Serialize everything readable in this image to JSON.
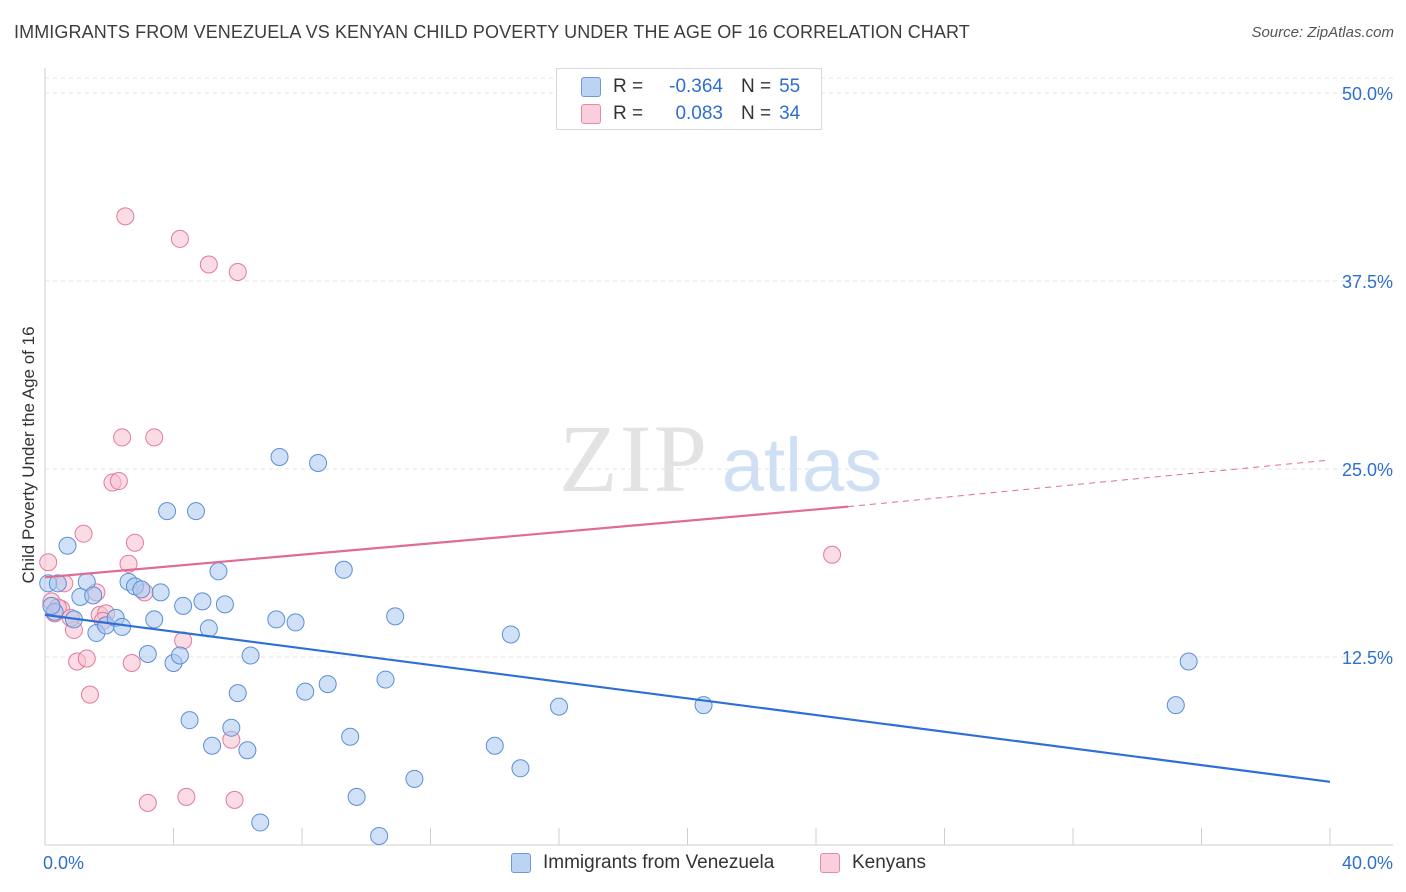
{
  "title": "IMMIGRANTS FROM VENEZUELA VS KENYAN CHILD POVERTY UNDER THE AGE OF 16 CORRELATION CHART",
  "source": "Source: ZipAtlas.com",
  "watermark": {
    "zip": "ZIP",
    "atlas": "atlas"
  },
  "legend": {
    "rows": [
      {
        "r_label": "R =",
        "r_value": "-0.364",
        "n_label": "N =",
        "n_value": "55"
      },
      {
        "r_label": "R =",
        "r_value": "0.083",
        "n_label": "N =",
        "n_value": "34"
      }
    ]
  },
  "chart_data": {
    "type": "scatter",
    "title": "IMMIGRANTS FROM VENEZUELA VS KENYAN CHILD POVERTY UNDER THE AGE OF 16 CORRELATION CHART",
    "xlabel": "",
    "ylabel": "Child Poverty Under the Age of 16",
    "xlim": [
      0,
      40
    ],
    "ylim": [
      0,
      51
    ],
    "x_tick_labels": [
      "0.0%",
      "40.0%"
    ],
    "y_ticks": [
      12.5,
      25.0,
      37.5,
      50.0
    ],
    "y_tick_labels": [
      "12.5%",
      "25.0%",
      "37.5%",
      "50.0%"
    ],
    "grid": true,
    "colors": {
      "venezuela_fill": "#a9c8f0",
      "venezuela_stroke": "#5b8fd6",
      "venezuela_line": "#2e6fd6",
      "kenyan_fill": "#f7bfd0",
      "kenyan_stroke": "#e27a9c",
      "kenyan_line": "#e06b94",
      "axis_label": "#2f6fcf"
    },
    "series": [
      {
        "name": "Immigrants from Venezuela",
        "points": [
          [
            0.1,
            17.4
          ],
          [
            0.3,
            15.5
          ],
          [
            0.4,
            17.4
          ],
          [
            0.7,
            19.9
          ],
          [
            0.9,
            15.0
          ],
          [
            1.1,
            16.5
          ],
          [
            1.3,
            17.5
          ],
          [
            1.5,
            16.6
          ],
          [
            1.6,
            14.1
          ],
          [
            1.9,
            14.6
          ],
          [
            2.2,
            15.1
          ],
          [
            2.4,
            14.5
          ],
          [
            2.6,
            17.5
          ],
          [
            2.8,
            17.2
          ],
          [
            3.0,
            17.0
          ],
          [
            3.2,
            12.7
          ],
          [
            3.4,
            15.0
          ],
          [
            3.6,
            16.8
          ],
          [
            3.8,
            22.2
          ],
          [
            4.0,
            12.1
          ],
          [
            4.2,
            12.6
          ],
          [
            4.3,
            15.9
          ],
          [
            4.5,
            8.3
          ],
          [
            4.7,
            22.2
          ],
          [
            4.9,
            16.2
          ],
          [
            5.1,
            14.4
          ],
          [
            5.2,
            6.6
          ],
          [
            5.4,
            18.2
          ],
          [
            5.6,
            16.0
          ],
          [
            5.8,
            7.8
          ],
          [
            6.0,
            10.1
          ],
          [
            6.3,
            6.3
          ],
          [
            6.4,
            12.6
          ],
          [
            6.7,
            1.5
          ],
          [
            7.2,
            15.0
          ],
          [
            7.3,
            25.8
          ],
          [
            7.8,
            14.8
          ],
          [
            8.1,
            10.2
          ],
          [
            8.5,
            25.4
          ],
          [
            8.8,
            10.7
          ],
          [
            9.3,
            18.3
          ],
          [
            9.5,
            7.2
          ],
          [
            9.7,
            3.2
          ],
          [
            10.4,
            0.6
          ],
          [
            10.6,
            11.0
          ],
          [
            10.9,
            15.2
          ],
          [
            11.5,
            4.4
          ],
          [
            14.0,
            6.6
          ],
          [
            14.5,
            14.0
          ],
          [
            14.8,
            5.1
          ],
          [
            16.0,
            9.2
          ],
          [
            20.5,
            9.3
          ],
          [
            35.2,
            9.3
          ],
          [
            35.6,
            12.2
          ],
          [
            0.2,
            15.9
          ]
        ]
      },
      {
        "name": "Kenyans",
        "points": [
          [
            0.1,
            18.8
          ],
          [
            0.2,
            16.2
          ],
          [
            0.3,
            15.4
          ],
          [
            0.5,
            15.7
          ],
          [
            0.6,
            17.4
          ],
          [
            0.9,
            14.3
          ],
          [
            1.0,
            12.2
          ],
          [
            1.2,
            20.7
          ],
          [
            1.3,
            12.4
          ],
          [
            1.4,
            10.0
          ],
          [
            1.6,
            16.8
          ],
          [
            1.7,
            15.3
          ],
          [
            1.9,
            15.4
          ],
          [
            2.1,
            24.1
          ],
          [
            2.3,
            24.2
          ],
          [
            2.4,
            27.1
          ],
          [
            2.5,
            41.8
          ],
          [
            2.6,
            18.7
          ],
          [
            2.7,
            12.1
          ],
          [
            2.8,
            20.1
          ],
          [
            3.1,
            16.8
          ],
          [
            3.2,
            2.8
          ],
          [
            3.4,
            27.1
          ],
          [
            4.2,
            40.3
          ],
          [
            4.3,
            13.6
          ],
          [
            4.4,
            3.2
          ],
          [
            5.1,
            38.6
          ],
          [
            5.8,
            7.0
          ],
          [
            5.9,
            3.0
          ],
          [
            6.0,
            38.1
          ],
          [
            24.5,
            19.3
          ],
          [
            0.4,
            15.8
          ],
          [
            0.8,
            15.1
          ],
          [
            1.8,
            14.9
          ]
        ]
      }
    ],
    "trend_lines": [
      {
        "series": "Immigrants from Venezuela",
        "x": [
          0,
          40
        ],
        "y": [
          15.3,
          4.2
        ],
        "style": "solid"
      },
      {
        "series": "Kenyans",
        "x": [
          0,
          25
        ],
        "y": [
          17.8,
          22.5
        ],
        "style": "solid"
      },
      {
        "series": "Kenyans",
        "x": [
          25,
          40
        ],
        "y": [
          22.5,
          25.6
        ],
        "style": "dashed"
      }
    ]
  },
  "bottom_legend": {
    "items": [
      {
        "label": "Immigrants from Venezuela"
      },
      {
        "label": "Kenyans"
      }
    ]
  }
}
